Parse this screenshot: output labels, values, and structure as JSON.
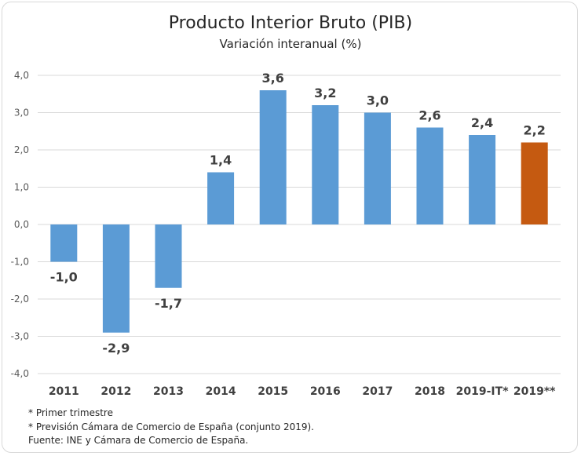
{
  "chart_data": {
    "type": "bar",
    "title": "Producto Interior Bruto (PIB)",
    "subtitle": "Variación interanual (%)",
    "categories": [
      "2011",
      "2012",
      "2013",
      "2014",
      "2015",
      "2016",
      "2017",
      "2018",
      "2019-IT*",
      "2019**"
    ],
    "values": [
      -1.0,
      -2.9,
      -1.7,
      1.4,
      3.6,
      3.2,
      3.0,
      2.6,
      2.4,
      2.2
    ],
    "value_labels": [
      "-1,0",
      "-2,9",
      "-1,7",
      "1,4",
      "3,6",
      "3,2",
      "3,0",
      "2,6",
      "2,4",
      "2,2"
    ],
    "bar_colors": [
      "#5b9bd5",
      "#5b9bd5",
      "#5b9bd5",
      "#5b9bd5",
      "#5b9bd5",
      "#5b9bd5",
      "#5b9bd5",
      "#5b9bd5",
      "#5b9bd5",
      "#c55a11"
    ],
    "ylim": [
      -4.0,
      4.0
    ],
    "yticks": [
      4.0,
      3.0,
      2.0,
      1.0,
      0.0,
      -1.0,
      -2.0,
      -3.0,
      -4.0
    ],
    "ytick_labels": [
      "4,0",
      "3,0",
      "2,0",
      "1,0",
      "0,0",
      "-1,0",
      "-2,0",
      "-3,0",
      "-4,0"
    ],
    "grid": true,
    "legend": "none"
  },
  "notes": [
    "* Primer trimestre",
    "* Previsión Cámara de Comercio de España (conjunto 2019).",
    "Fuente: INE y Cámara de Comercio de España."
  ]
}
